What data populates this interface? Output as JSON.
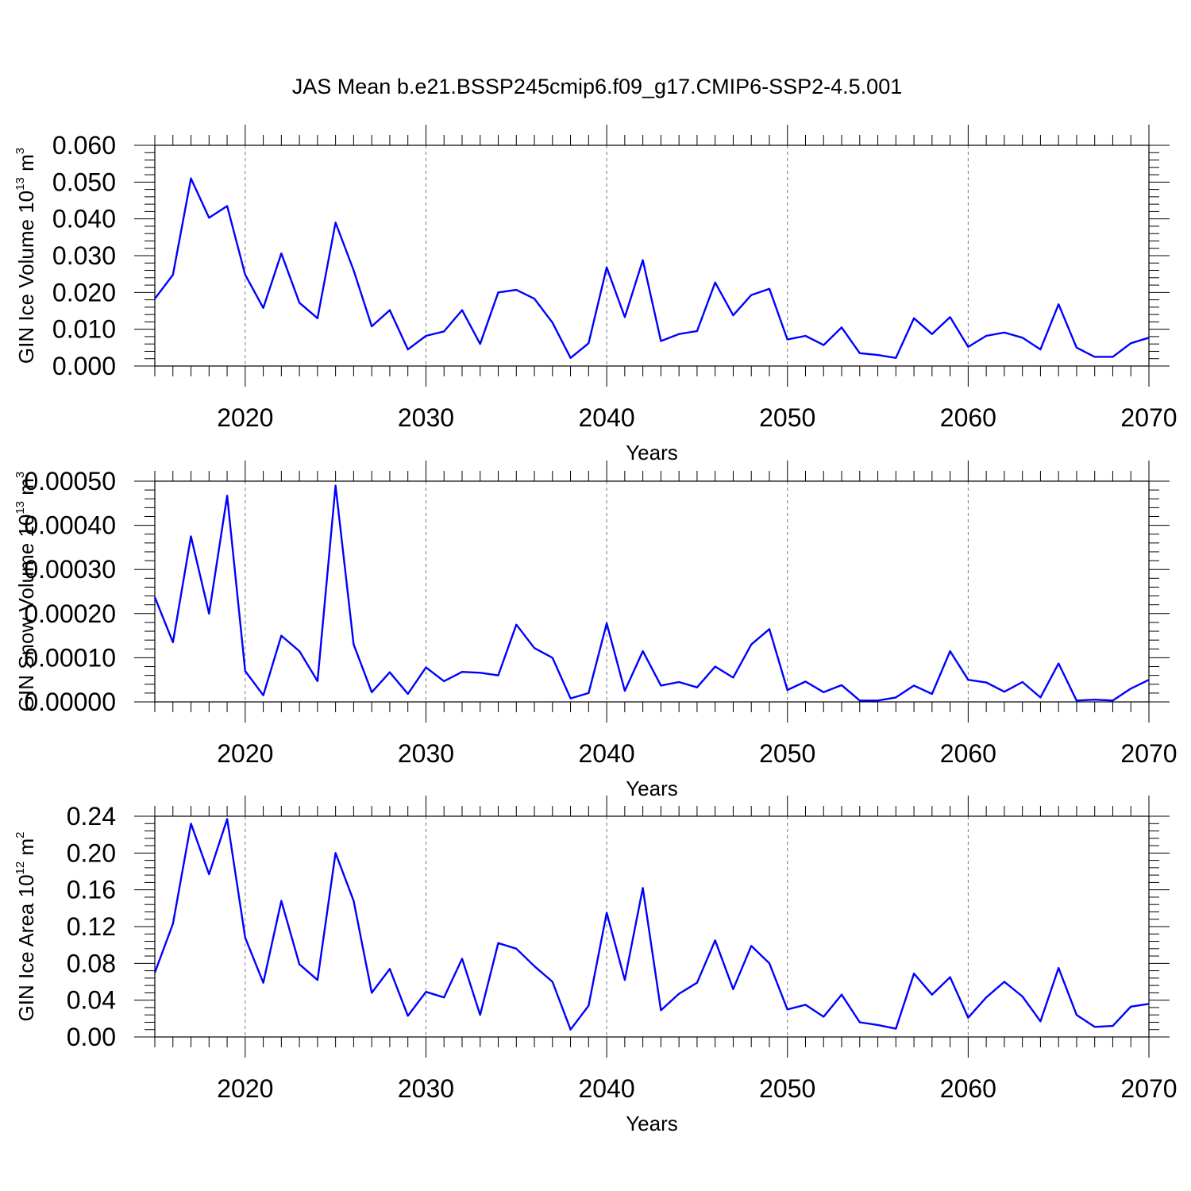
{
  "title": "JAS Mean b.e21.BSSP245cmip6.f09_g17.CMIP6-SSP2-4.5.001",
  "colors": {
    "line": "#0000ff",
    "grid": "#777777"
  },
  "chart_data": [
    {
      "type": "line",
      "ylabel": {
        "text": "GIN Ice Volume 10",
        "sup": "13",
        "unit": " m",
        "unit_sup": "3"
      },
      "xlabel": "Years",
      "xlim": [
        2015,
        2070
      ],
      "ylim": [
        0,
        0.06
      ],
      "xticks": [
        2020,
        2030,
        2040,
        2050,
        2060,
        2070
      ],
      "yticks": [
        "0.000",
        "0.010",
        "0.020",
        "0.030",
        "0.040",
        "0.050",
        "0.060"
      ],
      "grid": "vertical-dashed",
      "x": [
        2015,
        2016,
        2017,
        2018,
        2019,
        2020,
        2021,
        2022,
        2023,
        2024,
        2025,
        2026,
        2027,
        2028,
        2029,
        2030,
        2031,
        2032,
        2033,
        2034,
        2035,
        2036,
        2037,
        2038,
        2039,
        2040,
        2041,
        2042,
        2043,
        2044,
        2045,
        2046,
        2047,
        2048,
        2049,
        2050,
        2051,
        2052,
        2053,
        2054,
        2055,
        2056,
        2057,
        2058,
        2059,
        2060,
        2061,
        2062,
        2063,
        2064,
        2065,
        2066,
        2067,
        2068,
        2069,
        2070
      ],
      "series": [
        {
          "values": [
            0.0183,
            0.0248,
            0.051,
            0.0403,
            0.0435,
            0.0248,
            0.0158,
            0.0306,
            0.0172,
            0.013,
            0.039,
            0.026,
            0.0108,
            0.0152,
            0.0045,
            0.0082,
            0.0094,
            0.0152,
            0.006,
            0.02,
            0.0207,
            0.0183,
            0.0118,
            0.0022,
            0.0062,
            0.0268,
            0.0133,
            0.0288,
            0.0068,
            0.0087,
            0.0095,
            0.0227,
            0.0138,
            0.0193,
            0.021,
            0.0072,
            0.0082,
            0.0057,
            0.0105,
            0.0035,
            0.003,
            0.0022,
            0.013,
            0.0087,
            0.0133,
            0.0052,
            0.0082,
            0.0091,
            0.0077,
            0.0045,
            0.0168,
            0.005,
            0.0025,
            0.0025,
            0.0062,
            0.0077
          ]
        }
      ]
    },
    {
      "type": "line",
      "ylabel": {
        "text": "GIN Snow Volume 10",
        "sup": "13",
        "unit": " m",
        "unit_sup": "3"
      },
      "xlabel": "Years",
      "xlim": [
        2015,
        2070
      ],
      "ylim": [
        0,
        0.0005
      ],
      "xticks": [
        2020,
        2030,
        2040,
        2050,
        2060,
        2070
      ],
      "yticks": [
        "0.00000",
        "0.00010",
        "0.00020",
        "0.00030",
        "0.00040",
        "0.00050"
      ],
      "grid": "vertical-dashed",
      "x": [
        2015,
        2016,
        2017,
        2018,
        2019,
        2020,
        2021,
        2022,
        2023,
        2024,
        2025,
        2026,
        2027,
        2028,
        2029,
        2030,
        2031,
        2032,
        2033,
        2034,
        2035,
        2036,
        2037,
        2038,
        2039,
        2040,
        2041,
        2042,
        2043,
        2044,
        2045,
        2046,
        2047,
        2048,
        2049,
        2050,
        2051,
        2052,
        2053,
        2054,
        2055,
        2056,
        2057,
        2058,
        2059,
        2060,
        2061,
        2062,
        2063,
        2064,
        2065,
        2066,
        2067,
        2068,
        2069,
        2070
      ],
      "series": [
        {
          "values": [
            0.000237,
            0.000135,
            0.000375,
            0.0002,
            0.000467,
            7e-05,
            1.5e-05,
            0.00015,
            0.000115,
            4.7e-05,
            0.00049,
            0.00013,
            2.2e-05,
            6.7e-05,
            1.8e-05,
            7.8e-05,
            4.7e-05,
            6.8e-05,
            6.6e-05,
            6e-05,
            0.000175,
            0.000122,
            0.0001,
            8e-06,
            2e-05,
            0.000178,
            2.5e-05,
            0.000115,
            3.7e-05,
            4.5e-05,
            3.3e-05,
            8e-05,
            5.5e-05,
            0.00013,
            0.000165,
            2.7e-05,
            4.6e-05,
            2.2e-05,
            3.8e-05,
            3e-06,
            3e-06,
            1e-05,
            3.7e-05,
            1.8e-05,
            0.000115,
            5e-05,
            4.4e-05,
            2.3e-05,
            4.5e-05,
            1e-05,
            8.7e-05,
            3e-06,
            5e-06,
            3e-06,
            3e-05,
            5e-05
          ]
        }
      ]
    },
    {
      "type": "line",
      "ylabel": {
        "text": "GIN Ice Area 10",
        "sup": "12",
        "unit": " m",
        "unit_sup": "2"
      },
      "xlabel": "Years",
      "xlim": [
        2015,
        2070
      ],
      "ylim": [
        0,
        0.24
      ],
      "xticks": [
        2020,
        2030,
        2040,
        2050,
        2060,
        2070
      ],
      "yticks": [
        "0.00",
        "0.04",
        "0.08",
        "0.12",
        "0.16",
        "0.20",
        "0.24"
      ],
      "grid": "vertical-dashed",
      "x": [
        2015,
        2016,
        2017,
        2018,
        2019,
        2020,
        2021,
        2022,
        2023,
        2024,
        2025,
        2026,
        2027,
        2028,
        2029,
        2030,
        2031,
        2032,
        2033,
        2034,
        2035,
        2036,
        2037,
        2038,
        2039,
        2040,
        2041,
        2042,
        2043,
        2044,
        2045,
        2046,
        2047,
        2048,
        2049,
        2050,
        2051,
        2052,
        2053,
        2054,
        2055,
        2056,
        2057,
        2058,
        2059,
        2060,
        2061,
        2062,
        2063,
        2064,
        2065,
        2066,
        2067,
        2068,
        2069,
        2070
      ],
      "series": [
        {
          "values": [
            0.07,
            0.123,
            0.232,
            0.177,
            0.237,
            0.108,
            0.059,
            0.148,
            0.079,
            0.062,
            0.2,
            0.148,
            0.048,
            0.074,
            0.023,
            0.049,
            0.043,
            0.085,
            0.024,
            0.102,
            0.096,
            0.077,
            0.06,
            0.008,
            0.034,
            0.135,
            0.062,
            0.162,
            0.029,
            0.047,
            0.059,
            0.105,
            0.052,
            0.099,
            0.08,
            0.03,
            0.035,
            0.022,
            0.046,
            0.016,
            0.013,
            0.009,
            0.069,
            0.046,
            0.065,
            0.021,
            0.043,
            0.06,
            0.044,
            0.017,
            0.075,
            0.024,
            0.011,
            0.012,
            0.033,
            0.036
          ]
        }
      ]
    }
  ]
}
